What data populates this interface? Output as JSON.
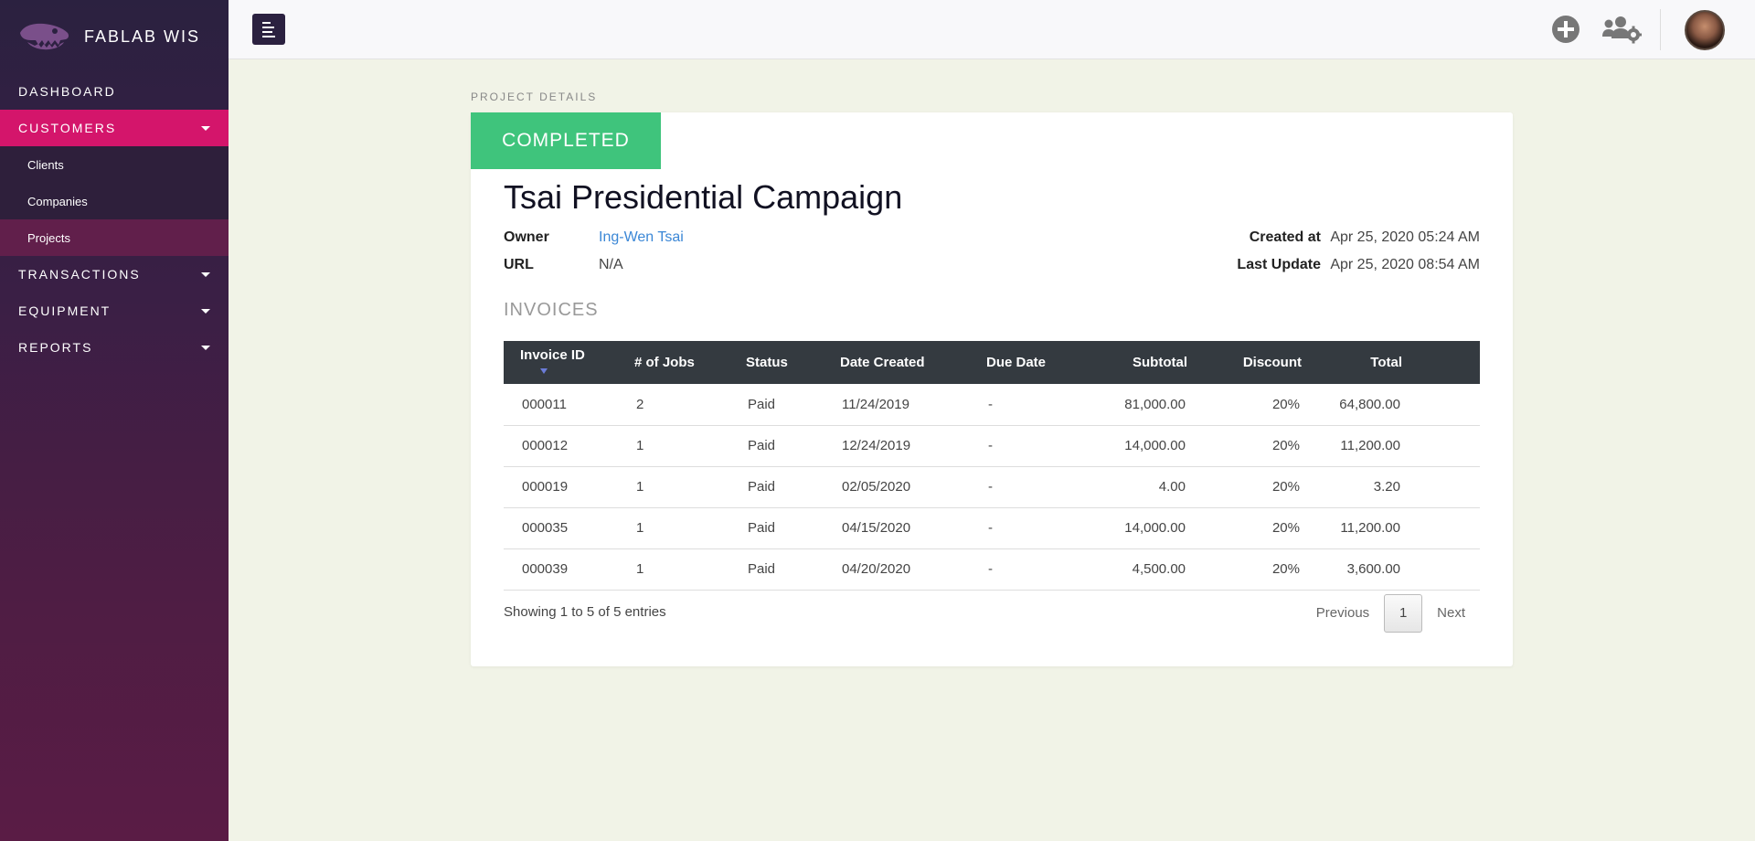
{
  "brand": {
    "name": "FABLAB WIS",
    "logo_icon": "dinosaur-skull-icon"
  },
  "sidebar": {
    "items": [
      {
        "label": "DASHBOARD"
      },
      {
        "label": "CUSTOMERS",
        "active": true,
        "expanded": true,
        "children": [
          {
            "label": "Clients"
          },
          {
            "label": "Companies"
          },
          {
            "label": "Projects",
            "active": true
          }
        ]
      },
      {
        "label": "TRANSACTIONS"
      },
      {
        "label": "EQUIPMENT"
      },
      {
        "label": "REPORTS"
      }
    ]
  },
  "topbar": {
    "add_icon": "plus-circle-icon",
    "manage_icon": "users-gear-icon"
  },
  "page": {
    "section_label": "PROJECT DETAILS",
    "status": "COMPLETED",
    "status_color": "#3fc47c",
    "title": "Tsai Presidential Campaign",
    "owner_label": "Owner",
    "owner_value": "Ing-Wen Tsai",
    "url_label": "URL",
    "url_value": "N/A",
    "created_label": "Created at",
    "created_value": "Apr 25, 2020 05:24 AM",
    "updated_label": "Last Update",
    "updated_value": "Apr 25, 2020 08:54 AM",
    "invoices_heading": "INVOICES"
  },
  "invoices": {
    "headers": [
      "Invoice ID",
      "# of Jobs",
      "Status",
      "Date Created",
      "Due Date",
      "Subtotal",
      "Discount",
      "Total"
    ],
    "rows": [
      [
        "000011",
        "2",
        "Paid",
        "11/24/2019",
        "-",
        "81,000.00",
        "20%",
        "64,800.00"
      ],
      [
        "000012",
        "1",
        "Paid",
        "12/24/2019",
        "-",
        "14,000.00",
        "20%",
        "11,200.00"
      ],
      [
        "000019",
        "1",
        "Paid",
        "02/05/2020",
        "-",
        "4.00",
        "20%",
        "3.20"
      ],
      [
        "000035",
        "1",
        "Paid",
        "04/15/2020",
        "-",
        "14,000.00",
        "20%",
        "11,200.00"
      ],
      [
        "000039",
        "1",
        "Paid",
        "04/20/2020",
        "-",
        "4,500.00",
        "20%",
        "3,600.00"
      ]
    ],
    "entries_info": "Showing 1 to 5 of 5 entries",
    "pagination": {
      "previous": "Previous",
      "current": "1",
      "next": "Next"
    }
  },
  "colors": {
    "accent": "#d4156b",
    "sidebar_bg": "#2b2140",
    "link": "#3b87d6"
  }
}
